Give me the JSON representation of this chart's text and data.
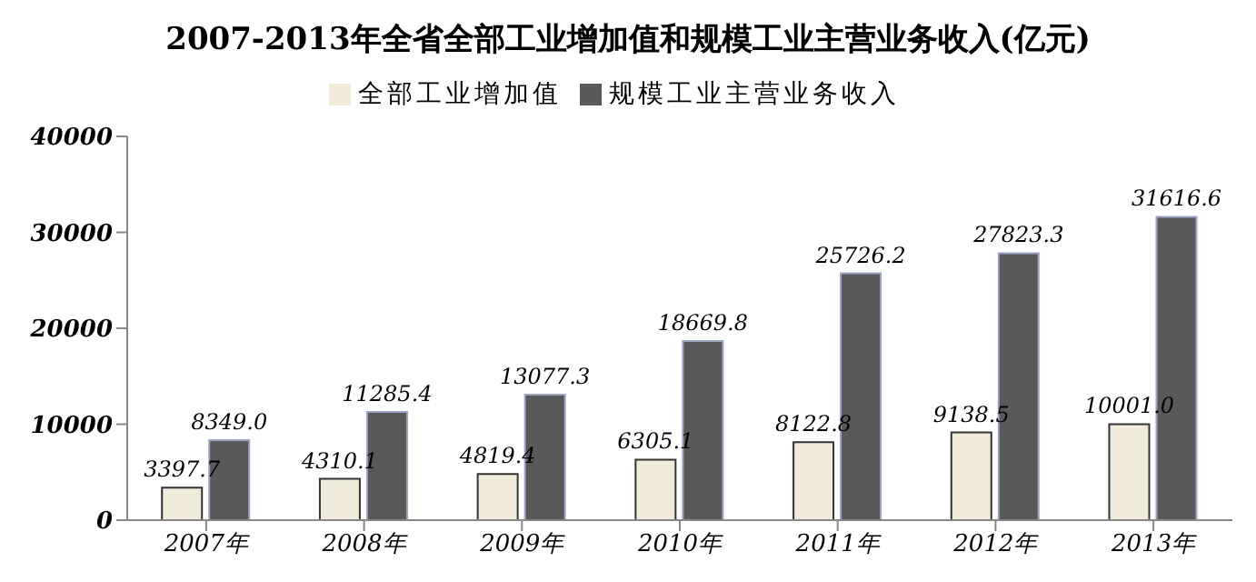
{
  "chart_data": {
    "type": "bar",
    "title": "2007-2013年全省全部工业增加值和规模工业主营业务收入(亿元)",
    "categories": [
      "2007年",
      "2008年",
      "2009年",
      "2010年",
      "2011年",
      "2012年",
      "2013年"
    ],
    "series": [
      {
        "name": "全部工业增加值",
        "color": "#efebd8",
        "values": [
          3397.7,
          4310.1,
          4819.4,
          6305.1,
          8122.8,
          9138.5,
          10001
        ],
        "value_labels": [
          "3397.7",
          "4310.1",
          "4819.4",
          "6305.1",
          "8122.8",
          "9138.5",
          "10001.0"
        ]
      },
      {
        "name": "规模工业主营业务收入",
        "color": "#595959",
        "values": [
          8349,
          11285.4,
          13077.3,
          18669.8,
          25726.2,
          27823.3,
          31616.6
        ],
        "value_labels": [
          "8349.0",
          "11285.4",
          "13077.3",
          "18669.8",
          "25726.2",
          "27823.3",
          "31616.6"
        ]
      }
    ],
    "ylim": [
      0,
      40000
    ],
    "yticks": [
      0,
      10000,
      20000,
      30000,
      40000
    ],
    "grid": false,
    "legend": "top"
  }
}
